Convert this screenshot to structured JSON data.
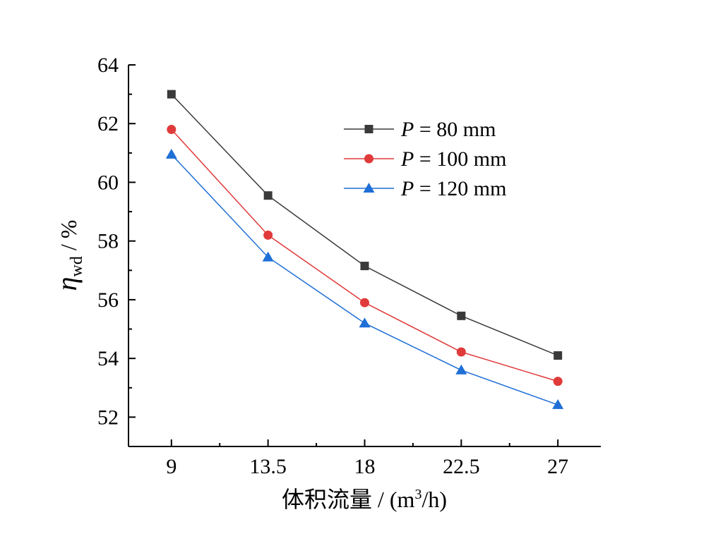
{
  "chart_data": {
    "type": "line",
    "xlabel": "体积流量 / (m3/h)",
    "xlabel_parts": {
      "main": "体积流量 / (m",
      "sup": "3",
      "tail": "/h)"
    },
    "ylabel": "ηwd / %",
    "ylabel_parts": {
      "symbol": "η",
      "sub": "wd",
      "tail": " / %"
    },
    "x": [
      9,
      13.5,
      18,
      22.5,
      27
    ],
    "x_tick_labels": [
      "9",
      "13.5",
      "18",
      "22.5",
      "27"
    ],
    "xlim": [
      7,
      29
    ],
    "ylim": [
      51,
      64
    ],
    "y_ticks": [
      52,
      54,
      56,
      58,
      60,
      62,
      64
    ],
    "y_tick_labels": [
      "52",
      "54",
      "56",
      "58",
      "60",
      "62",
      "64"
    ],
    "grid": false,
    "legend_position": "top-right",
    "series": [
      {
        "name": "P = 80 mm",
        "legend_italic": "P",
        "legend_rest": " = 80 mm",
        "color": "#3a3a3a",
        "marker": "square",
        "values": [
          63.0,
          59.55,
          57.15,
          55.45,
          54.1
        ]
      },
      {
        "name": "P = 100 mm",
        "legend_italic": "P",
        "legend_rest": " = 100 mm",
        "color": "#e03a3a",
        "marker": "circle",
        "values": [
          61.8,
          58.2,
          55.9,
          54.22,
          53.22
        ]
      },
      {
        "name": "P = 120 mm",
        "legend_italic": "P",
        "legend_rest": " = 120 mm",
        "color": "#1f6fd6",
        "marker": "triangle",
        "values": [
          60.95,
          57.45,
          55.2,
          53.6,
          52.42
        ]
      }
    ]
  }
}
